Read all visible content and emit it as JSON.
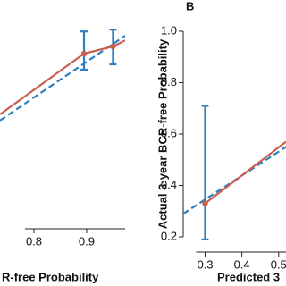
{
  "chart_data": [
    {
      "type": "line",
      "xlabel": "R-free Probability",
      "xlim": [
        0.7356,
        0.973
      ],
      "ylim": [
        0.453,
        1.073
      ],
      "xticks": [
        0.8,
        0.9
      ],
      "series": [
        {
          "color": "#c8604f",
          "style": "solid",
          "x": [
            0.7356,
            0.895,
            0.95,
            0.973
          ],
          "values": [
            0.753,
            0.923,
            0.943,
            0.96
          ],
          "points": [
            false,
            true,
            true,
            false
          ],
          "lower": [
            null,
            0.878,
            0.893,
            null
          ],
          "upper": [
            null,
            0.985,
            0.99,
            null
          ]
        },
        {
          "color": "#2e7fc1",
          "style": "dashed",
          "x": [
            0.7356,
            0.973
          ],
          "values": [
            0.736,
            0.973
          ]
        }
      ]
    },
    {
      "type": "line",
      "title": "B",
      "xlabel": "Predicted  3",
      "ylabel": "Actual 3-year BCR-free Probability",
      "xlim": [
        0.2405,
        0.52
      ],
      "ylim": [
        0.148,
        1.052
      ],
      "xticks": [
        0.3,
        0.4,
        0.5
      ],
      "yticks": [
        0.2,
        0.4,
        0.6,
        0.8,
        {
          "value": 1,
          "label": "1.0"
        }
      ],
      "series": [
        {
          "color": "#c8604f",
          "style": "solid",
          "x": [
            0.3,
            0.52
          ],
          "values": [
            0.33,
            0.57
          ],
          "points": [
            true,
            false
          ],
          "lower": [
            0.19,
            null
          ],
          "upper": [
            0.71,
            null
          ]
        },
        {
          "color": "#2e7fc1",
          "style": "dashed",
          "x": [
            0.2405,
            0.52
          ],
          "values": [
            0.29,
            0.55
          ]
        }
      ]
    }
  ]
}
